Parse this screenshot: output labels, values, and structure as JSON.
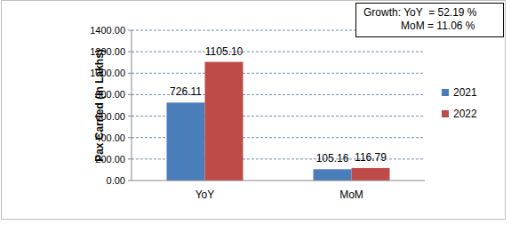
{
  "chart_data": {
    "type": "bar",
    "y_label": "Pax Carried (in Lakhs)",
    "categories": [
      "YoY",
      "MoM"
    ],
    "series": [
      {
        "name": "2021",
        "color": "#4a7ebb",
        "values": [
          726.11,
          105.16
        ]
      },
      {
        "name": "2022",
        "color": "#be4b48",
        "values": [
          1105.1,
          116.79
        ],
        "value_labels": [
          "1105.10",
          "116.79"
        ]
      }
    ],
    "ylim": [
      0,
      1400
    ],
    "yticks": [
      {
        "value": 0,
        "label": "0.00"
      },
      {
        "value": 200,
        "label": "200.00"
      },
      {
        "value": 400,
        "label": "400.00"
      },
      {
        "value": 600,
        "label": "600.00"
      },
      {
        "value": 800,
        "label": "800.00"
      },
      {
        "value": 1000,
        "label": "1000.00"
      },
      {
        "value": 1200,
        "label": "1200.00"
      },
      {
        "value": 1400,
        "label": "1400.00"
      }
    ],
    "grid": true,
    "legend": "right",
    "data_labels": true,
    "annotations": [
      "Growth: YoY  = 52.19 %",
      "MoM = 11.06 %"
    ]
  }
}
